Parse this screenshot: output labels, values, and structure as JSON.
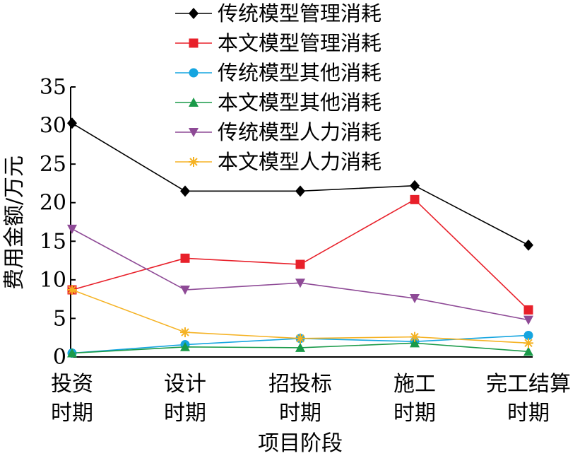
{
  "chart_data": {
    "type": "line",
    "categories": [
      [
        "投资",
        "时期"
      ],
      [
        "设计",
        "时期"
      ],
      [
        "招投标",
        "时期"
      ],
      [
        "施工",
        "时期"
      ],
      [
        "完工结算",
        "时期"
      ]
    ],
    "xlabel": "项目阶段",
    "ylabel": "费用金额/万元",
    "ylim": [
      0,
      35
    ],
    "yticks": [
      0,
      5,
      10,
      15,
      20,
      25,
      30,
      35
    ],
    "grid": false,
    "legend_position": "top-center",
    "series": [
      {
        "name": "传统模型管理消耗",
        "color": "#000000",
        "marker": "diamond",
        "values": [
          30.3,
          21.5,
          21.5,
          22.2,
          14.5
        ]
      },
      {
        "name": "本文模型管理消耗",
        "color": "#e8202a",
        "marker": "square",
        "values": [
          8.7,
          12.8,
          12.0,
          20.4,
          6.1
        ]
      },
      {
        "name": "传统模型其他消耗",
        "color": "#15a5e0",
        "marker": "circle",
        "values": [
          0.5,
          1.6,
          2.4,
          2.0,
          2.8
        ]
      },
      {
        "name": "本文模型其他消耗",
        "color": "#1a9a49",
        "marker": "triangle-up",
        "values": [
          0.5,
          1.3,
          1.2,
          1.8,
          0.7
        ]
      },
      {
        "name": "传统模型人力消耗",
        "color": "#8e4a96",
        "marker": "triangle-down",
        "values": [
          16.6,
          8.7,
          9.6,
          7.6,
          4.8
        ]
      },
      {
        "name": "本文模型人力消耗",
        "color": "#f5b223",
        "marker": "asterisk",
        "values": [
          8.7,
          3.2,
          2.4,
          2.6,
          1.8
        ]
      }
    ]
  }
}
